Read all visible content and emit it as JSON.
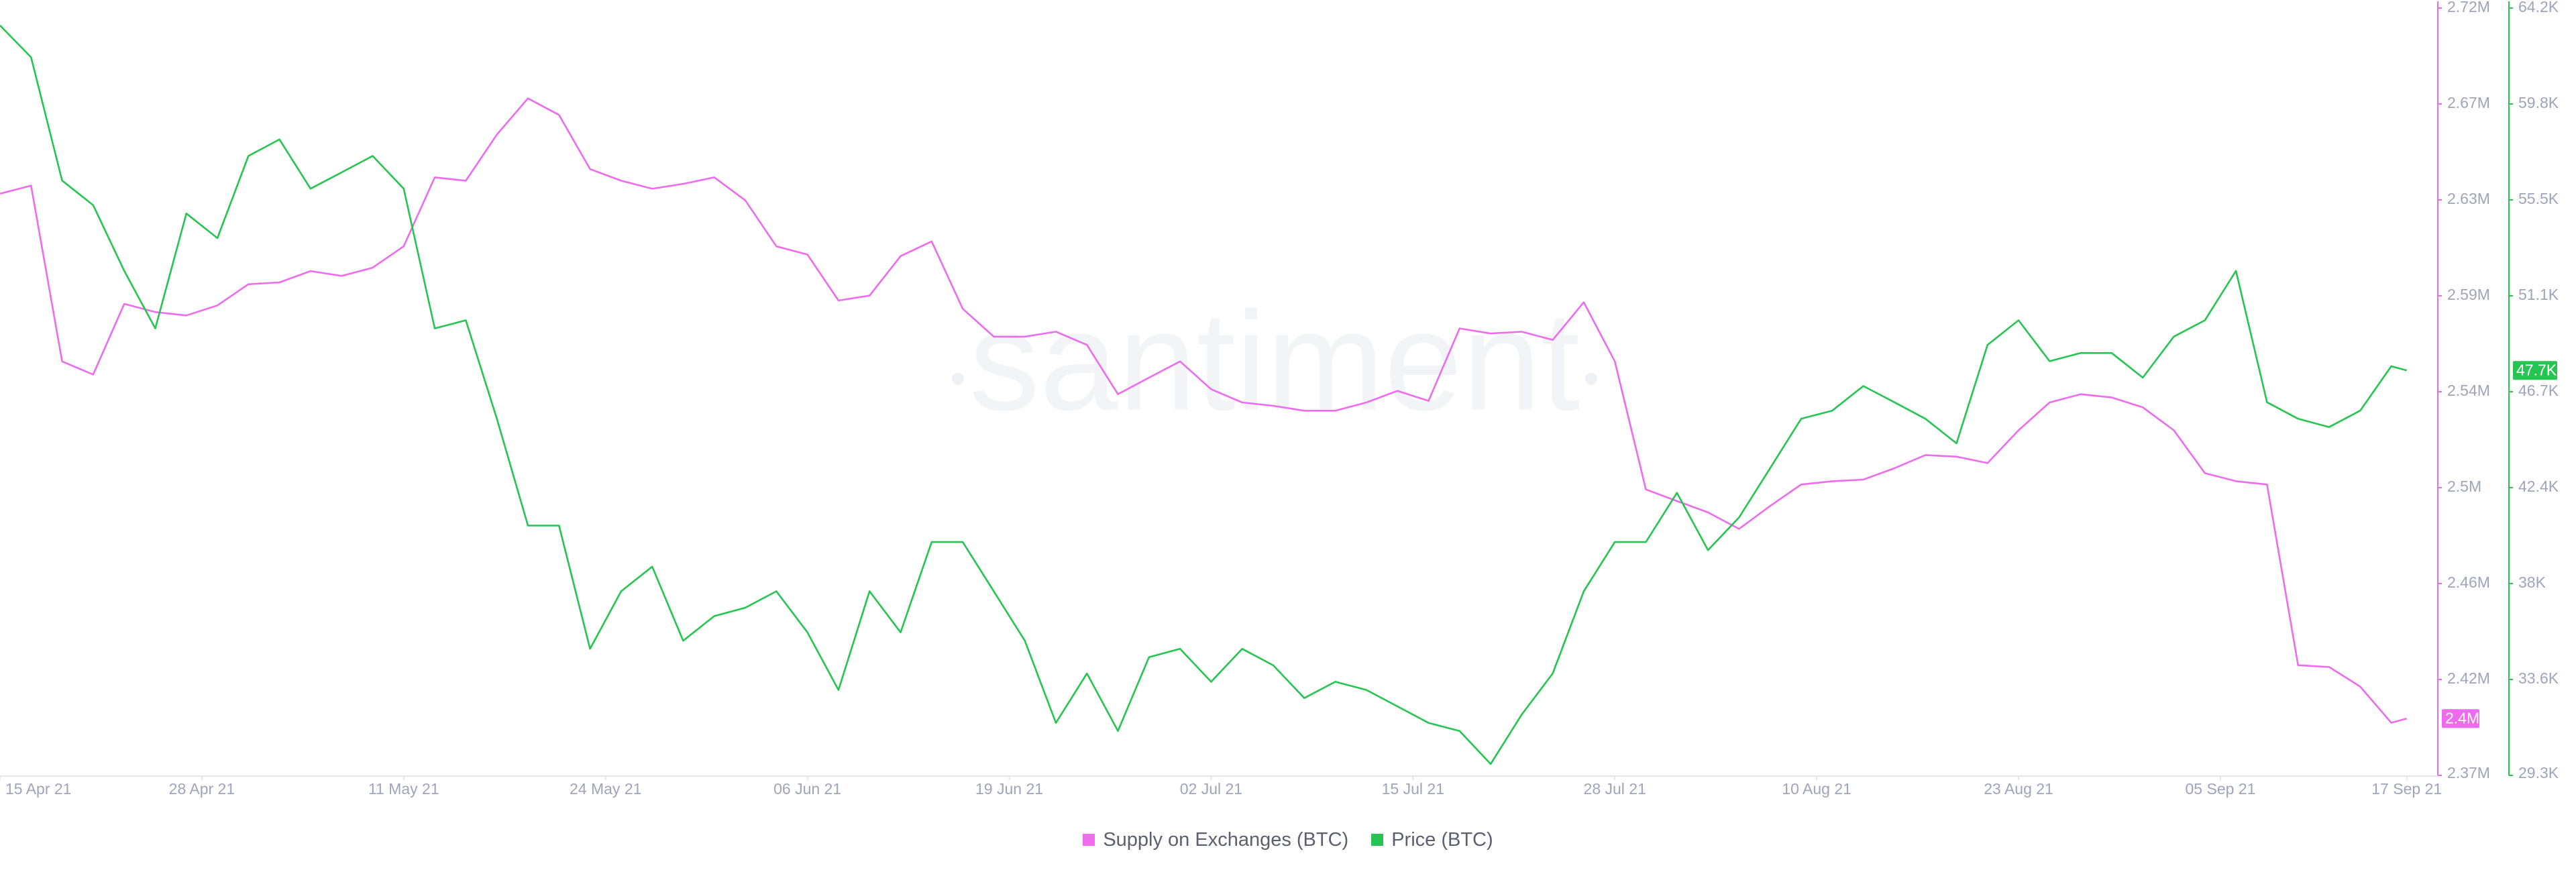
{
  "chart_data": {
    "type": "line",
    "watermark": "santiment",
    "x": [
      "2021-04-15",
      "2021-04-17",
      "2021-04-19",
      "2021-04-21",
      "2021-04-23",
      "2021-04-25",
      "2021-04-27",
      "2021-04-29",
      "2021-05-01",
      "2021-05-03",
      "2021-05-05",
      "2021-05-07",
      "2021-05-09",
      "2021-05-11",
      "2021-05-13",
      "2021-05-15",
      "2021-05-17",
      "2021-05-19",
      "2021-05-21",
      "2021-05-23",
      "2021-05-25",
      "2021-05-27",
      "2021-05-29",
      "2021-05-31",
      "2021-06-02",
      "2021-06-04",
      "2021-06-06",
      "2021-06-08",
      "2021-06-10",
      "2021-06-12",
      "2021-06-14",
      "2021-06-16",
      "2021-06-18",
      "2021-06-20",
      "2021-06-22",
      "2021-06-24",
      "2021-06-26",
      "2021-06-28",
      "2021-06-30",
      "2021-07-02",
      "2021-07-04",
      "2021-07-06",
      "2021-07-08",
      "2021-07-10",
      "2021-07-12",
      "2021-07-14",
      "2021-07-16",
      "2021-07-18",
      "2021-07-20",
      "2021-07-22",
      "2021-07-24",
      "2021-07-26",
      "2021-07-28",
      "2021-07-30",
      "2021-08-01",
      "2021-08-03",
      "2021-08-05",
      "2021-08-07",
      "2021-08-09",
      "2021-08-11",
      "2021-08-13",
      "2021-08-15",
      "2021-08-17",
      "2021-08-19",
      "2021-08-21",
      "2021-08-23",
      "2021-08-25",
      "2021-08-27",
      "2021-08-29",
      "2021-08-31",
      "2021-09-02",
      "2021-09-04",
      "2021-09-06",
      "2021-09-08",
      "2021-09-10",
      "2021-09-12",
      "2021-09-14",
      "2021-09-16",
      "2021-09-17"
    ],
    "xlim": [
      "2021-04-15",
      "2021-09-19"
    ],
    "xticks": [
      {
        "value": "2021-04-15",
        "label": "15 Apr 21"
      },
      {
        "value": "2021-04-28",
        "label": "28 Apr 21"
      },
      {
        "value": "2021-05-11",
        "label": "11 May 21"
      },
      {
        "value": "2021-05-24",
        "label": "24 May 21"
      },
      {
        "value": "2021-06-06",
        "label": "06 Jun 21"
      },
      {
        "value": "2021-06-19",
        "label": "19 Jun 21"
      },
      {
        "value": "2021-07-02",
        "label": "02 Jul 21"
      },
      {
        "value": "2021-07-15",
        "label": "15 Jul 21"
      },
      {
        "value": "2021-07-28",
        "label": "28 Jul 21"
      },
      {
        "value": "2021-08-10",
        "label": "10 Aug 21"
      },
      {
        "value": "2021-08-23",
        "label": "23 Aug 21"
      },
      {
        "value": "2021-09-05",
        "label": "05 Sep 21"
      },
      {
        "value": "2021-09-17",
        "label": "17 Sep 21"
      }
    ],
    "ylim": [
      2372500,
      2716500
    ],
    "yticks": [
      {
        "value": 2372500,
        "label": "2.37M"
      },
      {
        "value": 2415500,
        "label": "2.42M"
      },
      {
        "value": 2458500,
        "label": "2.46M"
      },
      {
        "value": 2501500,
        "label": "2.5M"
      },
      {
        "value": 2544500,
        "label": "2.54M"
      },
      {
        "value": 2587500,
        "label": "2.59M"
      },
      {
        "value": 2630500,
        "label": "2.63M"
      },
      {
        "value": 2673500,
        "label": "2.67M"
      },
      {
        "value": 2716500,
        "label": "2.72M"
      }
    ],
    "y2lim": [
      29270,
      64190
    ],
    "y2ticks": [
      {
        "value": 29270,
        "label": "29.3K"
      },
      {
        "value": 33635,
        "label": "33.6K"
      },
      {
        "value": 38000,
        "label": "38K"
      },
      {
        "value": 42365,
        "label": "42.4K"
      },
      {
        "value": 46730,
        "label": "46.7K"
      },
      {
        "value": 51095,
        "label": "51.1K"
      },
      {
        "value": 55460,
        "label": "55.5K"
      },
      {
        "value": 59825,
        "label": "59.8K"
      },
      {
        "value": 64190,
        "label": "64.2K"
      }
    ],
    "grid": false,
    "legend": "bottom",
    "series": [
      {
        "name": "Supply on Exchanges (BTC)",
        "color": "#ec6ced",
        "end_label": "2.4M",
        "values": [
          2633300,
          2636900,
          2558100,
          2552200,
          2583900,
          2580200,
          2578700,
          2583200,
          2592700,
          2593500,
          2598600,
          2596400,
          2600100,
          2609700,
          2640600,
          2639100,
          2659800,
          2676000,
          2668600,
          2644300,
          2639100,
          2635500,
          2637700,
          2640600,
          2630300,
          2609700,
          2606000,
          2585400,
          2587600,
          2605300,
          2611900,
          2581700,
          2569200,
          2569200,
          2571400,
          2565500,
          2543400,
          2550800,
          2558100,
          2545600,
          2539700,
          2538200,
          2536000,
          2536000,
          2539700,
          2544900,
          2540400,
          2572900,
          2570600,
          2571400,
          2567700,
          2584600,
          2558100,
          2500700,
          2495500,
          2490400,
          2483000,
          2493300,
          2502900,
          2504400,
          2505100,
          2510200,
          2516100,
          2515400,
          2512500,
          2527200,
          2539700,
          2543400,
          2541900,
          2537500,
          2527200,
          2508000,
          2504400,
          2502900,
          2421900,
          2421100,
          2412300,
          2396100,
          2398000
        ]
      },
      {
        "name": "Price (BTC)",
        "color": "#26c450",
        "axis": "y2",
        "end_label": "47.7K",
        "values": [
          63400,
          61950,
          56340,
          55220,
          52230,
          49610,
          54840,
          53720,
          57460,
          58210,
          55970,
          56710,
          57460,
          55970,
          49610,
          49980,
          45500,
          40640,
          40640,
          35030,
          37650,
          38770,
          35400,
          36520,
          36900,
          37650,
          35780,
          33160,
          37650,
          35780,
          39890,
          39890,
          37650,
          35400,
          31660,
          33910,
          31290,
          34650,
          35030,
          33530,
          35030,
          34280,
          32790,
          33530,
          33160,
          32410,
          31660,
          31290,
          29790,
          32040,
          33910,
          37650,
          39890,
          39890,
          42130,
          39520,
          41010,
          43250,
          45500,
          45870,
          46990,
          46250,
          45500,
          44380,
          48860,
          49980,
          48120,
          48490,
          48490,
          47370,
          49240,
          49980,
          52230,
          46250,
          45500,
          45120,
          45870,
          47890,
          47700
        ]
      }
    ]
  }
}
